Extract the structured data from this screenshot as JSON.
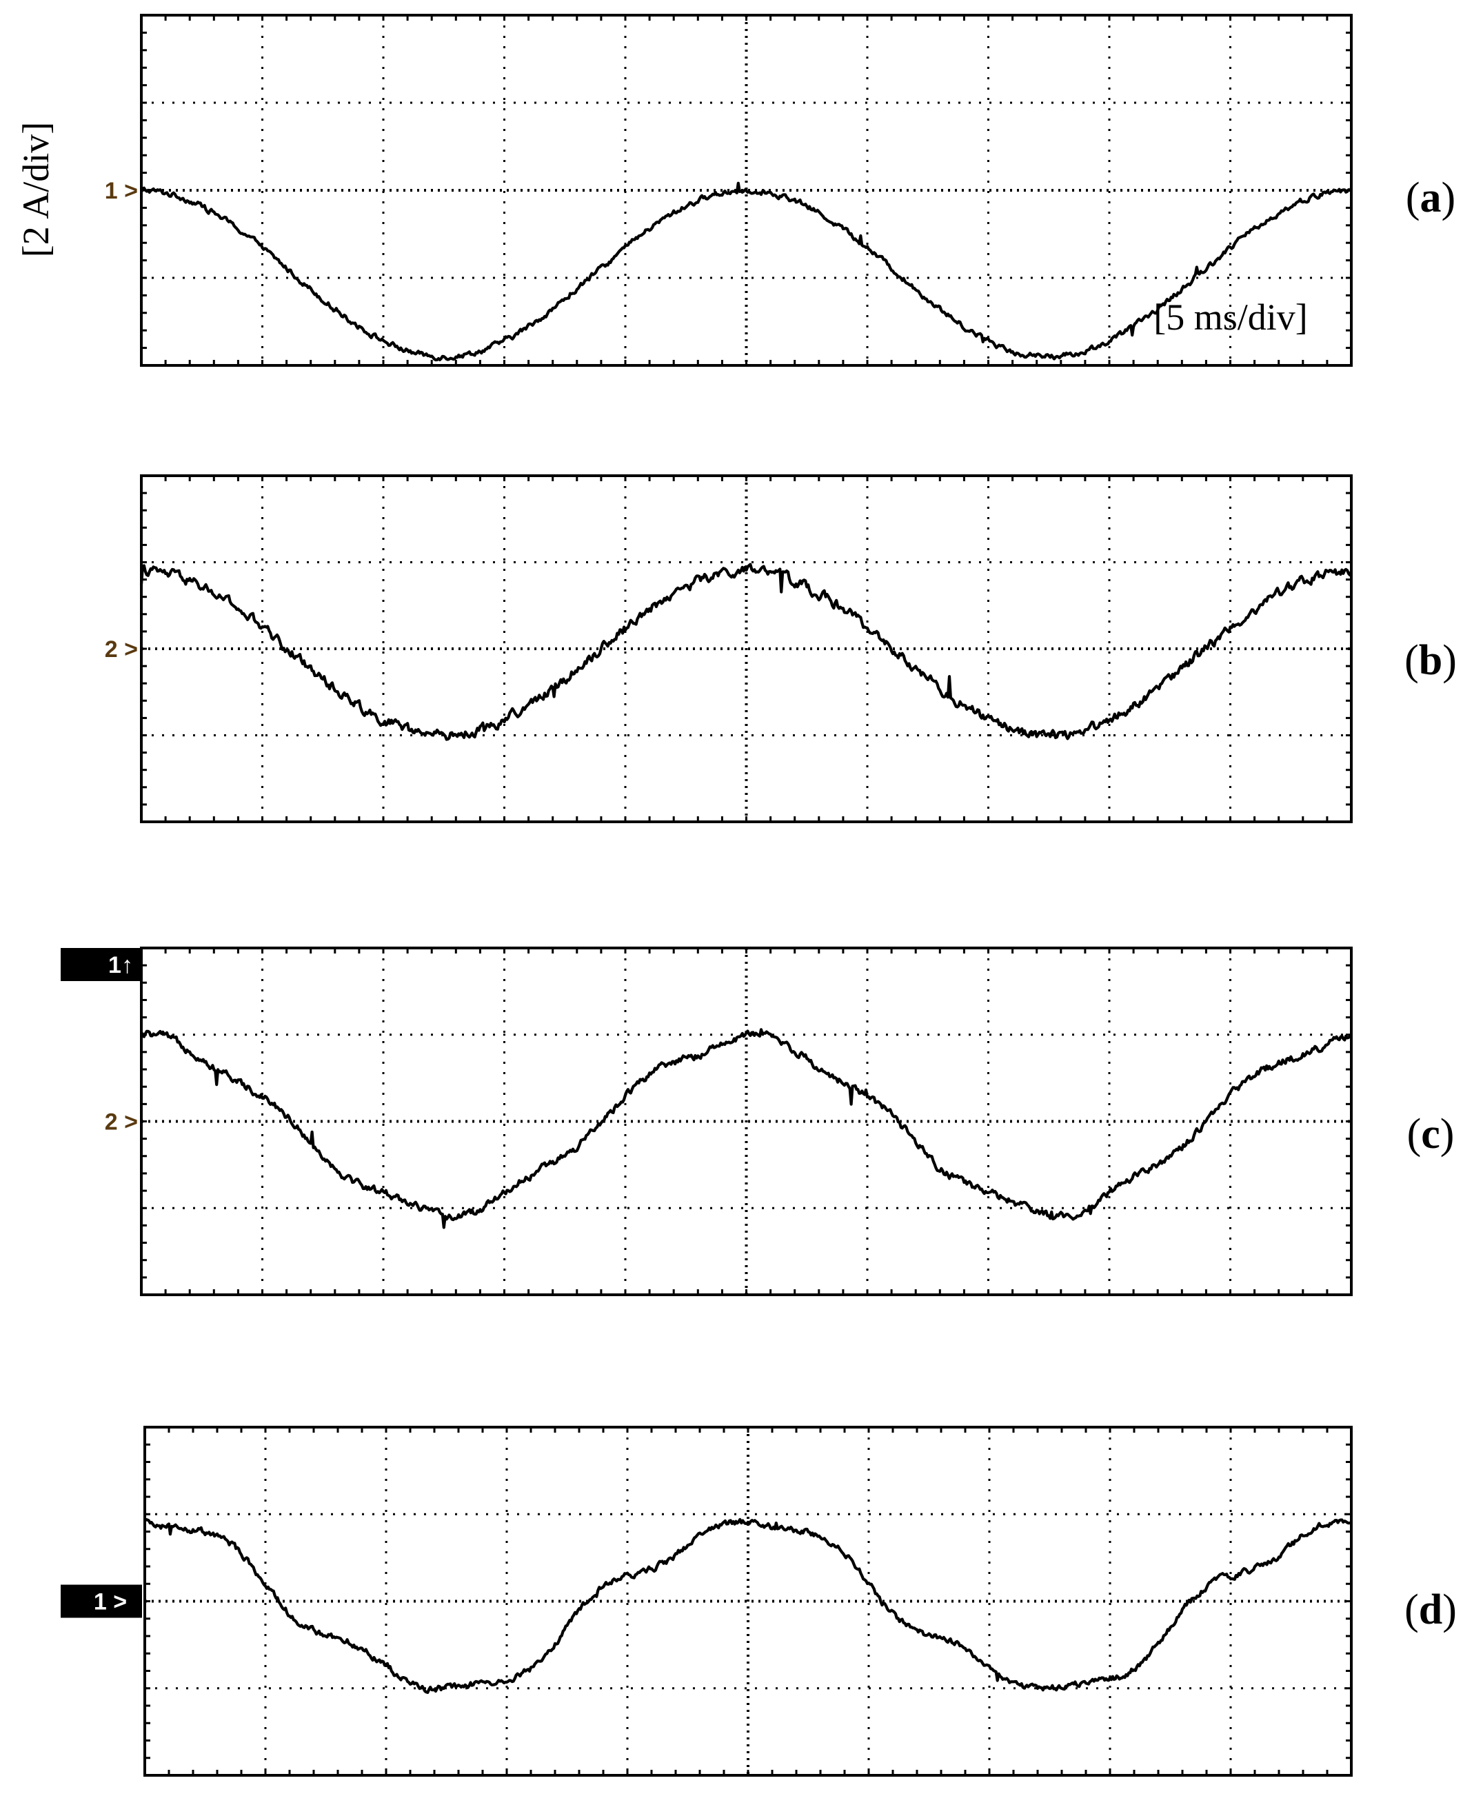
{
  "chart_data": [
    {
      "type": "line",
      "panel_label": "a",
      "channel_marker": "1",
      "marker_style": "plain",
      "ylabel": "[2 A/div]",
      "xlabel": "[5 ms/div]",
      "grid": true,
      "divisions": {
        "x": 10,
        "y": 4
      },
      "x_unit_per_div": "5 ms",
      "y_unit_per_div": "2 A",
      "x_range_div": [
        0,
        10
      ],
      "y_range_div": [
        -2,
        2
      ],
      "offset_div": -0.95,
      "amplitude_div": 0.95,
      "cycles": 2,
      "phase_deg": 90,
      "harmonics": [],
      "noise": 0.05
    },
    {
      "type": "line",
      "panel_label": "b",
      "channel_marker": "2",
      "marker_style": "plain",
      "grid": true,
      "divisions": {
        "x": 10,
        "y": 4
      },
      "x_range_div": [
        0,
        10
      ],
      "y_range_div": [
        -2,
        2
      ],
      "offset_div": -0.05,
      "amplitude_div": 0.95,
      "cycles": 2,
      "phase_deg": 90,
      "harmonics": [],
      "noise": 0.09
    },
    {
      "type": "line",
      "panel_label": "c",
      "channel_marker": "2",
      "top_marker": "1",
      "marker_style": "plain",
      "grid": true,
      "divisions": {
        "x": 10,
        "y": 4
      },
      "x_range_div": [
        0,
        10
      ],
      "y_range_div": [
        -2,
        2
      ],
      "offset_div": -0.05,
      "amplitude_div": 1.0,
      "cycles": 2,
      "phase_deg": 90,
      "harmonics": [
        {
          "order": 5,
          "amp": 0.06,
          "phase_deg": 40
        }
      ],
      "noise": 0.07
    },
    {
      "type": "line",
      "panel_label": "d",
      "channel_marker": "1",
      "marker_style": "boxed",
      "grid": true,
      "divisions": {
        "x": 10,
        "y": 4
      },
      "x_range_div": [
        0,
        10
      ],
      "y_range_div": [
        -2,
        2
      ],
      "offset_div": -0.05,
      "amplitude_div": 0.95,
      "cycles": 2,
      "phase_deg": 90,
      "harmonics": [
        {
          "order": 3,
          "amp": 0.08,
          "phase_deg": 0
        },
        {
          "order": 5,
          "amp": 0.08,
          "phase_deg": 180
        }
      ],
      "noise": 0.06
    }
  ]
}
